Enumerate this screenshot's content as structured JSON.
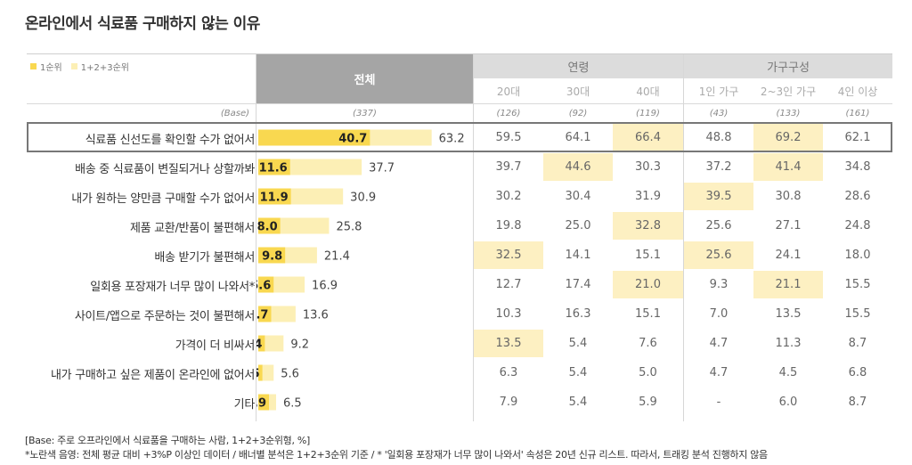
{
  "title": "온라인에서 식료품 구매하지 않는 이유",
  "legend": {
    "first": "1순위",
    "combined": "1+2+3순위"
  },
  "header": {
    "total": "전체",
    "groups": [
      {
        "name": "연령",
        "subs": [
          "20대",
          "30대",
          "40대"
        ]
      },
      {
        "name": "가구구성",
        "subs": [
          "1인 가구",
          "2~3인 가구",
          "4인 이상"
        ]
      }
    ]
  },
  "base": {
    "label": "(Base)",
    "total": "(337)",
    "values": [
      "(126)",
      "(92)",
      "(119)",
      "(43)",
      "(133)",
      "(161)"
    ]
  },
  "colors": {
    "first": "#f9d850",
    "combined": "#fcefb5",
    "highlight_cell": "#fdf0c2",
    "header_total": "#a5a5a5",
    "header_group": "#dcdcdc"
  },
  "chart_data": {
    "type": "bar",
    "categories": [
      "식료품 신선도를 확인할 수가 없어서",
      "배송 중 식료품이 변질되거나 상할까봐",
      "내가 원하는 양만큼 구매할 수가 없어서",
      "제품 교환/반품이 불편해서",
      "배송 받기가 불편해서",
      "일회용 포장재가 너무 많이 나와서*",
      "사이트/앱으로 주문하는 것이 불편해서",
      "가격이 더 비싸서",
      "내가 구매하고 싶은 제품이 온라인에 없어서",
      "기타"
    ],
    "series": [
      {
        "name": "1순위",
        "values": [
          40.7,
          11.6,
          11.9,
          8.0,
          9.8,
          5.6,
          4.7,
          2.4,
          1.5,
          3.9
        ],
        "labels": [
          "40.7",
          "11.6",
          "11.9",
          "8.0",
          "9.8",
          "5.6",
          "4.7",
          "2.4",
          "1.5",
          "3.9"
        ]
      },
      {
        "name": "1+2+3순위",
        "values": [
          63.2,
          37.7,
          30.9,
          25.8,
          21.4,
          16.9,
          13.6,
          9.2,
          5.6,
          6.5
        ],
        "labels": [
          "63.2",
          "37.7",
          "30.9",
          "25.8",
          "21.4",
          "16.9",
          "13.6",
          "9.2",
          "5.6",
          "6.5"
        ]
      }
    ],
    "ylim": [
      0,
      100
    ]
  },
  "table": {
    "rows": [
      {
        "cells": [
          "59.5",
          "64.1",
          "66.4",
          "48.8",
          "69.2",
          "62.1"
        ],
        "hl": [
          false,
          false,
          true,
          false,
          true,
          false
        ]
      },
      {
        "cells": [
          "39.7",
          "44.6",
          "30.3",
          "37.2",
          "41.4",
          "34.8"
        ],
        "hl": [
          false,
          true,
          false,
          false,
          true,
          false
        ]
      },
      {
        "cells": [
          "30.2",
          "30.4",
          "31.9",
          "39.5",
          "30.8",
          "28.6"
        ],
        "hl": [
          false,
          false,
          false,
          true,
          false,
          false
        ]
      },
      {
        "cells": [
          "19.8",
          "25.0",
          "32.8",
          "25.6",
          "27.1",
          "24.8"
        ],
        "hl": [
          false,
          false,
          true,
          false,
          false,
          false
        ]
      },
      {
        "cells": [
          "32.5",
          "14.1",
          "15.1",
          "25.6",
          "24.1",
          "18.0"
        ],
        "hl": [
          true,
          false,
          false,
          true,
          false,
          false
        ]
      },
      {
        "cells": [
          "12.7",
          "17.4",
          "21.0",
          "9.3",
          "21.1",
          "15.5"
        ],
        "hl": [
          false,
          false,
          true,
          false,
          true,
          false
        ]
      },
      {
        "cells": [
          "10.3",
          "16.3",
          "15.1",
          "7.0",
          "13.5",
          "15.5"
        ],
        "hl": [
          false,
          false,
          false,
          false,
          false,
          false
        ]
      },
      {
        "cells": [
          "13.5",
          "5.4",
          "7.6",
          "4.7",
          "11.3",
          "8.7"
        ],
        "hl": [
          true,
          false,
          false,
          false,
          false,
          false
        ]
      },
      {
        "cells": [
          "6.3",
          "5.4",
          "5.0",
          "4.7",
          "4.5",
          "6.8"
        ],
        "hl": [
          false,
          false,
          false,
          false,
          false,
          false
        ]
      },
      {
        "cells": [
          "7.9",
          "5.4",
          "5.9",
          "-",
          "6.0",
          "8.7"
        ],
        "hl": [
          false,
          false,
          false,
          false,
          false,
          false
        ]
      }
    ]
  },
  "footnotes": [
    "[Base: 주로 오프라인에서 식료품을 구매하는 사람, 1+2+3순위형, %]",
    "*노란색 음영: 전체 평균 대비 +3%P 이상인 데이터 / 배너별 분석은 1+2+3순위 기준 / * '일회용 포장재가 너무 많이 나와서' 속성은 20년 신규 리스트. 따라서, 트래킹 분석 진행하지 않음"
  ]
}
